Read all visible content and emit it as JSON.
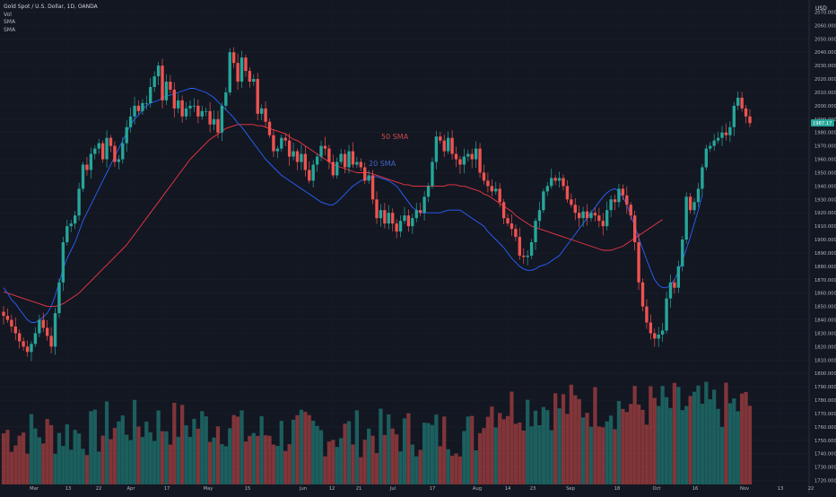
{
  "legend": {
    "symbol": "Gold Spot / U.S. Dollar, 1D, OANDA",
    "vol": "Vol",
    "sma1": "SMA",
    "sma2": "SMA"
  },
  "labels": {
    "ma50": "50 SMA",
    "ma20": "20 SMA"
  },
  "currency": "USD",
  "price_badge": "1987.17",
  "colors": {
    "background": "#131722",
    "up": "#26a69a",
    "down": "#ef5350",
    "sma20": "#2962ff",
    "sma50": "#f23645",
    "axis_text": "#b2b5be"
  },
  "chart_data": {
    "type": "candlestick",
    "x_ticks": [
      "Mar",
      "13",
      "22",
      "Apr",
      "17",
      "May",
      "15",
      "Jun",
      "12",
      "21",
      "Jul",
      "17",
      "Aug",
      "14",
      "23",
      "Sep",
      "18",
      "Oct",
      "16",
      "Nov",
      "13",
      "22"
    ],
    "y_ticks": [
      2070,
      2060,
      2050,
      2040,
      2030,
      2020,
      2010,
      2000,
      1990,
      1980,
      1970,
      1960,
      1950,
      1940,
      1930,
      1920,
      1910,
      1900,
      1890,
      1880,
      1870,
      1860,
      1850,
      1840,
      1830,
      1820,
      1810,
      1800,
      1790,
      1780,
      1770,
      1760,
      1750,
      1740,
      1730,
      1720
    ],
    "y_tick_format": "0.000",
    "ylim": [
      1717,
      2075
    ],
    "close": [
      1843,
      1840,
      1835,
      1830,
      1824,
      1820,
      1816,
      1822,
      1830,
      1840,
      1834,
      1828,
      1820,
      1845,
      1868,
      1898,
      1910,
      1912,
      1918,
      1938,
      1956,
      1952,
      1964,
      1968,
      1972,
      1960,
      1976,
      1970,
      1958,
      1960,
      1972,
      1984,
      1992,
      2000,
      1996,
      2002,
      2002,
      2014,
      2022,
      2030,
      2004,
      2018,
      2012,
      1998,
      2004,
      1992,
      1998,
      2000,
      2000,
      1992,
      1996,
      1996,
      1986,
      1990,
      1980,
      2000,
      2010,
      2040,
      2032,
      2018,
      2036,
      2026,
      2018,
      2020,
      1994,
      1998,
      1988,
      1978,
      1966,
      1968,
      1976,
      1974,
      1962,
      1966,
      1958,
      1964,
      1952,
      1944,
      1956,
      1962,
      1970,
      1968,
      1958,
      1948,
      1958,
      1964,
      1954,
      1966,
      1956,
      1958,
      1954,
      1944,
      1948,
      1930,
      1916,
      1922,
      1912,
      1920,
      1912,
      1906,
      1914,
      1918,
      1910,
      1916,
      1922,
      1920,
      1932,
      1940,
      1958,
      1977,
      1974,
      1966,
      1976,
      1964,
      1960,
      1956,
      1962,
      1964,
      1960,
      1968,
      1950,
      1944,
      1940,
      1936,
      1938,
      1928,
      1916,
      1912,
      1908,
      1902,
      1888,
      1887,
      1888,
      1898,
      1914,
      1922,
      1936,
      1940,
      1946,
      1944,
      1946,
      1940,
      1930,
      1926,
      1920,
      1916,
      1921,
      1916,
      1920,
      1918,
      1914,
      1910,
      1922,
      1930,
      1928,
      1938,
      1933,
      1926,
      1918,
      1898,
      1868,
      1850,
      1838,
      1830,
      1826,
      1829,
      1832,
      1856,
      1868,
      1864,
      1880,
      1900,
      1932,
      1922,
      1928,
      1938,
      1954,
      1968,
      1970,
      1974,
      1976,
      1980,
      1978,
      1984,
      2000,
      2006,
      1998,
      1992,
      1987
    ],
    "sma20": [
      1864,
      1860,
      1855,
      1852,
      1848,
      1844,
      1840,
      1838,
      1838,
      1840,
      1842,
      1845,
      1850,
      1858,
      1868,
      1878,
      1886,
      1892,
      1898,
      1906,
      1914,
      1920,
      1926,
      1932,
      1938,
      1944,
      1950,
      1956,
      1962,
      1968,
      1974,
      1980,
      1986,
      1990,
      1993,
      1997,
      2000,
      2002,
      2003,
      2004,
      2006,
      2007,
      2008,
      2009,
      2010,
      2011,
      2012,
      2013,
      2013,
      2012,
      2011,
      2010,
      2008,
      2006,
      2003,
      2000,
      1997,
      1994,
      1991,
      1987,
      1984,
      1980,
      1976,
      1972,
      1968,
      1964,
      1960,
      1957,
      1954,
      1951,
      1948,
      1946,
      1944,
      1942,
      1940,
      1938,
      1936,
      1934,
      1932,
      1930,
      1928,
      1927,
      1926,
      1926,
      1928,
      1931,
      1934,
      1937,
      1940,
      1942,
      1944,
      1945,
      1946,
      1947,
      1947,
      1946,
      1945,
      1944,
      1942,
      1940,
      1936,
      1932,
      1928,
      1924,
      1922,
      1920,
      1920,
      1920,
      1920,
      1920,
      1920,
      1921,
      1922,
      1922,
      1922,
      1922,
      1920,
      1918,
      1916,
      1914,
      1912,
      1910,
      1906,
      1903,
      1900,
      1897,
      1894,
      1890,
      1886,
      1883,
      1880,
      1878,
      1877,
      1877,
      1878,
      1880,
      1881,
      1882,
      1884,
      1886,
      1888,
      1892,
      1896,
      1900,
      1904,
      1908,
      1912,
      1916,
      1920,
      1924,
      1928,
      1932,
      1935,
      1937,
      1938,
      1936,
      1932,
      1926,
      1918,
      1910,
      1901,
      1893,
      1885,
      1877,
      1870,
      1866,
      1864,
      1864,
      1866,
      1870,
      1876,
      1884,
      1893,
      1902,
      1912,
      1922,
      1933
    ],
    "sma50": [
      1861,
      1860,
      1859,
      1858,
      1857,
      1856,
      1855,
      1854,
      1853,
      1852,
      1851,
      1850,
      1850,
      1850,
      1851,
      1852,
      1854,
      1856,
      1858,
      1860,
      1863,
      1866,
      1869,
      1872,
      1875,
      1878,
      1881,
      1884,
      1887,
      1890,
      1893,
      1896,
      1900,
      1904,
      1908,
      1912,
      1916,
      1920,
      1924,
      1928,
      1932,
      1936,
      1940,
      1944,
      1948,
      1952,
      1956,
      1960,
      1963,
      1966,
      1969,
      1972,
      1975,
      1977,
      1979,
      1981,
      1983,
      1984,
      1985,
      1986,
      1986,
      1986,
      1986,
      1986,
      1985,
      1985,
      1984,
      1983,
      1982,
      1981,
      1980,
      1979,
      1977,
      1975,
      1974,
      1972,
      1970,
      1968,
      1966,
      1964,
      1962,
      1960,
      1958,
      1956,
      1955,
      1954,
      1953,
      1952,
      1951,
      1950,
      1950,
      1950,
      1950,
      1949,
      1948,
      1947,
      1946,
      1945,
      1944,
      1943,
      1942,
      1941,
      1941,
      1940,
      1940,
      1940,
      1940,
      1940,
      1940,
      1940,
      1940,
      1940,
      1941,
      1941,
      1941,
      1940,
      1940,
      1939,
      1938,
      1937,
      1936,
      1934,
      1933,
      1931,
      1929,
      1927,
      1925,
      1923,
      1921,
      1918,
      1916,
      1914,
      1912,
      1910,
      1909,
      1908,
      1907,
      1906,
      1905,
      1904,
      1903,
      1902,
      1901,
      1900,
      1899,
      1898,
      1897,
      1896,
      1895,
      1894,
      1893,
      1892,
      1892,
      1892,
      1893,
      1894,
      1895,
      1897,
      1899,
      1901,
      1903,
      1905,
      1907,
      1909,
      1911,
      1913,
      1915
    ]
  }
}
